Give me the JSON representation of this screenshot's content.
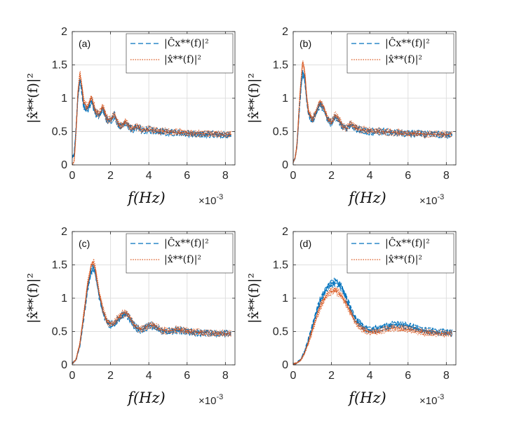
{
  "chart_data": [
    {
      "type": "line",
      "panel_label": "(a)",
      "xlabel": "f(Hz)",
      "x_exponent": "×10",
      "x_exponent_power": "-3",
      "ylabel": "|x̂**(f)|²",
      "xlim": [
        0,
        8.5
      ],
      "ylim": [
        0,
        2
      ],
      "xticks": [
        "0",
        "2",
        "4",
        "6",
        "8"
      ],
      "yticks": [
        "0",
        "0.5",
        "1",
        "1.5",
        "2"
      ],
      "grid": true,
      "legend_position": "top-right",
      "series": [
        {
          "name": "|Ĉx**(f)|²",
          "style": "dashed",
          "color": "#0072BD",
          "x": [
            0,
            0.1,
            0.2,
            0.3,
            0.4,
            0.5,
            0.6,
            0.8,
            1.0,
            1.2,
            1.4,
            1.6,
            1.8,
            2.0,
            2.2,
            2.4,
            2.6,
            2.8,
            3.0,
            3.2,
            3.4,
            3.6,
            3.8,
            4.0,
            4.5,
            5.0,
            5.5,
            6.0,
            6.5,
            7.0,
            7.5,
            8.0,
            8.3
          ],
          "y": [
            0.12,
            0.15,
            0.55,
            1.05,
            1.28,
            1.12,
            0.88,
            0.82,
            0.96,
            0.78,
            0.74,
            0.84,
            0.68,
            0.66,
            0.74,
            0.6,
            0.58,
            0.64,
            0.55,
            0.54,
            0.58,
            0.52,
            0.52,
            0.53,
            0.5,
            0.49,
            0.48,
            0.47,
            0.46,
            0.46,
            0.46,
            0.45,
            0.45
          ]
        },
        {
          "name": "|x̂**(f)|²",
          "style": "dotted",
          "color": "#D95319",
          "x": [
            0,
            0.1,
            0.2,
            0.3,
            0.4,
            0.5,
            0.6,
            0.8,
            1.0,
            1.2,
            1.4,
            1.6,
            1.8,
            2.0,
            2.2,
            2.4,
            2.6,
            2.8,
            3.0,
            3.2,
            3.4,
            3.6,
            3.8,
            4.0,
            4.5,
            5.0,
            5.5,
            6.0,
            6.5,
            7.0,
            7.5,
            8.0,
            8.3
          ],
          "y": [
            0.0,
            0.05,
            0.5,
            1.1,
            1.38,
            1.2,
            0.95,
            0.86,
            1.02,
            0.82,
            0.76,
            0.88,
            0.7,
            0.67,
            0.76,
            0.61,
            0.59,
            0.66,
            0.56,
            0.55,
            0.59,
            0.53,
            0.53,
            0.54,
            0.51,
            0.5,
            0.49,
            0.48,
            0.47,
            0.47,
            0.46,
            0.46,
            0.46
          ]
        }
      ]
    },
    {
      "type": "line",
      "panel_label": "(b)",
      "xlabel": "f(Hz)",
      "x_exponent": "×10",
      "x_exponent_power": "-3",
      "ylabel": "|x̂**(f)|²",
      "xlim": [
        0,
        8.5
      ],
      "ylim": [
        0,
        2
      ],
      "xticks": [
        "0",
        "2",
        "4",
        "6",
        "8"
      ],
      "yticks": [
        "0",
        "0.5",
        "1",
        "1.5",
        "2"
      ],
      "grid": true,
      "legend_position": "top-right",
      "series": [
        {
          "name": "|Ĉx**(f)|²",
          "style": "dashed",
          "color": "#0072BD",
          "x": [
            0,
            0.1,
            0.2,
            0.3,
            0.4,
            0.5,
            0.6,
            0.7,
            0.8,
            1.0,
            1.2,
            1.4,
            1.6,
            1.8,
            2.0,
            2.2,
            2.4,
            2.6,
            2.8,
            3.0,
            3.2,
            3.5,
            4.0,
            4.5,
            5.0,
            5.5,
            6.0,
            6.5,
            7.0,
            7.5,
            8.0,
            8.3
          ],
          "y": [
            0.05,
            0.1,
            0.3,
            0.75,
            1.15,
            1.4,
            1.3,
            1.0,
            0.78,
            0.66,
            0.78,
            0.92,
            0.84,
            0.68,
            0.62,
            0.72,
            0.66,
            0.56,
            0.55,
            0.6,
            0.56,
            0.52,
            0.5,
            0.5,
            0.49,
            0.48,
            0.47,
            0.47,
            0.46,
            0.46,
            0.45,
            0.45
          ]
        },
        {
          "name": "|x̂**(f)|²",
          "style": "dotted",
          "color": "#D95319",
          "x": [
            0,
            0.1,
            0.2,
            0.3,
            0.4,
            0.5,
            0.6,
            0.7,
            0.8,
            1.0,
            1.2,
            1.4,
            1.6,
            1.8,
            2.0,
            2.2,
            2.4,
            2.6,
            2.8,
            3.0,
            3.2,
            3.5,
            4.0,
            4.5,
            5.0,
            5.5,
            6.0,
            6.5,
            7.0,
            7.5,
            8.0,
            8.3
          ],
          "y": [
            0.04,
            0.1,
            0.3,
            0.8,
            1.25,
            1.55,
            1.4,
            1.05,
            0.8,
            0.68,
            0.8,
            0.96,
            0.86,
            0.7,
            0.64,
            0.75,
            0.68,
            0.57,
            0.56,
            0.62,
            0.57,
            0.53,
            0.51,
            0.5,
            0.49,
            0.48,
            0.47,
            0.47,
            0.46,
            0.46,
            0.46,
            0.46
          ]
        }
      ]
    },
    {
      "type": "line",
      "panel_label": "(c)",
      "xlabel": "f(Hz)",
      "x_exponent": "×10",
      "x_exponent_power": "-3",
      "ylabel": "|x̂**(f)|²",
      "xlim": [
        0,
        8.5
      ],
      "ylim": [
        0,
        2
      ],
      "xticks": [
        "0",
        "2",
        "4",
        "6",
        "8"
      ],
      "yticks": [
        "0",
        "0.5",
        "1",
        "1.5",
        "2"
      ],
      "grid": true,
      "legend_position": "top-right",
      "series": [
        {
          "name": "|Ĉx**(f)|²",
          "style": "dashed",
          "color": "#0072BD",
          "x": [
            0,
            0.2,
            0.4,
            0.6,
            0.8,
            1.0,
            1.1,
            1.2,
            1.4,
            1.6,
            1.8,
            2.0,
            2.2,
            2.4,
            2.6,
            2.8,
            3.0,
            3.2,
            3.4,
            3.6,
            3.8,
            4.0,
            4.2,
            4.4,
            4.6,
            4.8,
            5.0,
            5.5,
            6.0,
            6.5,
            7.0,
            7.5,
            8.0,
            8.3
          ],
          "y": [
            0.02,
            0.08,
            0.3,
            0.72,
            1.15,
            1.42,
            1.46,
            1.38,
            1.05,
            0.8,
            0.65,
            0.6,
            0.62,
            0.68,
            0.74,
            0.76,
            0.7,
            0.6,
            0.54,
            0.52,
            0.55,
            0.58,
            0.59,
            0.56,
            0.52,
            0.5,
            0.5,
            0.52,
            0.5,
            0.48,
            0.48,
            0.47,
            0.47,
            0.47
          ]
        },
        {
          "name": "|x̂**(f)|²",
          "style": "dotted",
          "color": "#D95319",
          "x": [
            0,
            0.2,
            0.4,
            0.6,
            0.8,
            1.0,
            1.1,
            1.2,
            1.4,
            1.6,
            1.8,
            2.0,
            2.2,
            2.4,
            2.6,
            2.8,
            3.0,
            3.2,
            3.4,
            3.6,
            3.8,
            4.0,
            4.2,
            4.4,
            4.6,
            4.8,
            5.0,
            5.5,
            6.0,
            6.5,
            7.0,
            7.5,
            8.0,
            8.3
          ],
          "y": [
            0.02,
            0.08,
            0.32,
            0.75,
            1.2,
            1.5,
            1.55,
            1.45,
            1.1,
            0.83,
            0.66,
            0.61,
            0.63,
            0.7,
            0.76,
            0.78,
            0.72,
            0.61,
            0.55,
            0.53,
            0.56,
            0.59,
            0.6,
            0.57,
            0.53,
            0.51,
            0.51,
            0.53,
            0.51,
            0.49,
            0.48,
            0.47,
            0.47,
            0.47
          ]
        }
      ]
    },
    {
      "type": "line",
      "panel_label": "(d)",
      "xlabel": "f(Hz)",
      "x_exponent": "×10",
      "x_exponent_power": "-3",
      "ylabel": "|x̂**(f)|²",
      "xlim": [
        0,
        8.5
      ],
      "ylim": [
        0,
        2
      ],
      "xticks": [
        "0",
        "2",
        "4",
        "6",
        "8"
      ],
      "yticks": [
        "0",
        "0.5",
        "1",
        "1.5",
        "2"
      ],
      "grid": true,
      "legend_position": "top-right",
      "series": [
        {
          "name": "|Ĉx**(f)|²",
          "style": "dashed",
          "color": "#0072BD",
          "x": [
            0,
            0.2,
            0.4,
            0.6,
            0.8,
            1.0,
            1.2,
            1.4,
            1.6,
            1.8,
            2.0,
            2.2,
            2.4,
            2.6,
            2.8,
            3.0,
            3.2,
            3.4,
            3.6,
            3.8,
            4.0,
            4.4,
            4.8,
            5.2,
            5.6,
            6.0,
            6.4,
            6.8,
            7.2,
            7.6,
            8.0,
            8.3
          ],
          "y": [
            0.01,
            0.03,
            0.08,
            0.2,
            0.38,
            0.58,
            0.78,
            0.95,
            1.08,
            1.17,
            1.22,
            1.24,
            1.2,
            1.12,
            0.98,
            0.84,
            0.72,
            0.64,
            0.58,
            0.54,
            0.52,
            0.54,
            0.57,
            0.6,
            0.6,
            0.58,
            0.55,
            0.52,
            0.5,
            0.49,
            0.49,
            0.48
          ]
        },
        {
          "name": "|x̂**(f)|²",
          "style": "dotted",
          "color": "#D95319",
          "x": [
            0,
            0.2,
            0.4,
            0.6,
            0.8,
            1.0,
            1.2,
            1.4,
            1.6,
            1.8,
            2.0,
            2.2,
            2.4,
            2.6,
            2.8,
            3.0,
            3.2,
            3.4,
            3.6,
            3.8,
            4.0,
            4.4,
            4.8,
            5.2,
            5.6,
            6.0,
            6.4,
            6.8,
            7.2,
            7.6,
            8.0,
            8.3
          ],
          "y": [
            0.01,
            0.03,
            0.07,
            0.18,
            0.34,
            0.52,
            0.7,
            0.86,
            0.98,
            1.06,
            1.1,
            1.12,
            1.08,
            1.0,
            0.9,
            0.78,
            0.67,
            0.59,
            0.54,
            0.51,
            0.49,
            0.5,
            0.53,
            0.55,
            0.55,
            0.53,
            0.51,
            0.49,
            0.48,
            0.47,
            0.47,
            0.47
          ]
        }
      ]
    }
  ]
}
